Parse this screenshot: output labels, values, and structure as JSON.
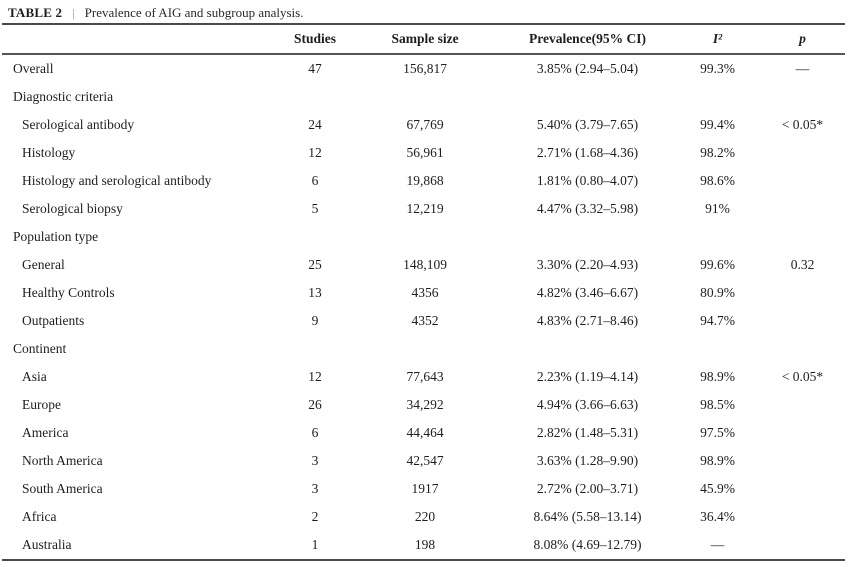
{
  "title": {
    "label": "TABLE 2",
    "separator": "|",
    "caption": "Prevalence of AIG and subgroup analysis."
  },
  "table": {
    "headers": {
      "label": "",
      "studies": "Studies",
      "sample_size": "Sample size",
      "prevalence": "Prevalence(95% CI)",
      "i2": "I²",
      "p": "p"
    },
    "rows": [
      {
        "type": "row",
        "label": "Overall",
        "studies": "47",
        "sample": "156,817",
        "prevalence": "3.85% (2.94–5.04)",
        "i2": "99.3%",
        "p": "—"
      },
      {
        "type": "section",
        "label": "Diagnostic criteria",
        "studies": "",
        "sample": "",
        "prevalence": "",
        "i2": "",
        "p": ""
      },
      {
        "type": "sub",
        "label": "Serological antibody",
        "studies": "24",
        "sample": "67,769",
        "prevalence": "5.40% (3.79–7.65)",
        "i2": "99.4%",
        "p": "< 0.05*"
      },
      {
        "type": "sub",
        "label": "Histology",
        "studies": "12",
        "sample": "56,961",
        "prevalence": "2.71% (1.68–4.36)",
        "i2": "98.2%",
        "p": ""
      },
      {
        "type": "sub",
        "label": "Histology and serological antibody",
        "studies": "6",
        "sample": "19,868",
        "prevalence": "1.81% (0.80–4.07)",
        "i2": "98.6%",
        "p": ""
      },
      {
        "type": "sub",
        "label": "Serological biopsy",
        "studies": "5",
        "sample": "12,219",
        "prevalence": "4.47% (3.32–5.98)",
        "i2": "91%",
        "p": ""
      },
      {
        "type": "section",
        "label": "Population type",
        "studies": "",
        "sample": "",
        "prevalence": "",
        "i2": "",
        "p": ""
      },
      {
        "type": "sub",
        "label": "General",
        "studies": "25",
        "sample": "148,109",
        "prevalence": "3.30% (2.20–4.93)",
        "i2": "99.6%",
        "p": "0.32"
      },
      {
        "type": "sub",
        "label": "Healthy Controls",
        "studies": "13",
        "sample": "4356",
        "prevalence": "4.82% (3.46–6.67)",
        "i2": "80.9%",
        "p": ""
      },
      {
        "type": "sub",
        "label": "Outpatients",
        "studies": "9",
        "sample": "4352",
        "prevalence": "4.83% (2.71–8.46)",
        "i2": "94.7%",
        "p": ""
      },
      {
        "type": "section",
        "label": "Continent",
        "studies": "",
        "sample": "",
        "prevalence": "",
        "i2": "",
        "p": ""
      },
      {
        "type": "sub",
        "label": "Asia",
        "studies": "12",
        "sample": "77,643",
        "prevalence": "2.23% (1.19–4.14)",
        "i2": "98.9%",
        "p": "< 0.05*"
      },
      {
        "type": "sub",
        "label": "Europe",
        "studies": "26",
        "sample": "34,292",
        "prevalence": "4.94% (3.66–6.63)",
        "i2": "98.5%",
        "p": ""
      },
      {
        "type": "sub",
        "label": "America",
        "studies": "6",
        "sample": "44,464",
        "prevalence": "2.82% (1.48–5.31)",
        "i2": "97.5%",
        "p": ""
      },
      {
        "type": "sub",
        "label": "North America",
        "studies": "3",
        "sample": "42,547",
        "prevalence": "3.63% (1.28–9.90)",
        "i2": "98.9%",
        "p": ""
      },
      {
        "type": "sub",
        "label": "South America",
        "studies": "3",
        "sample": "1917",
        "prevalence": "2.72% (2.00–3.71)",
        "i2": "45.9%",
        "p": ""
      },
      {
        "type": "sub",
        "label": "Africa",
        "studies": "2",
        "sample": "220",
        "prevalence": "8.64% (5.58–13.14)",
        "i2": "36.4%",
        "p": ""
      },
      {
        "type": "sub",
        "label": "Australia",
        "studies": "1",
        "sample": "198",
        "prevalence": "8.08% (4.69–12.79)",
        "i2": "—",
        "p": ""
      }
    ]
  },
  "text_color": "#1e1e1e",
  "rule_color": "#4a4a4a"
}
